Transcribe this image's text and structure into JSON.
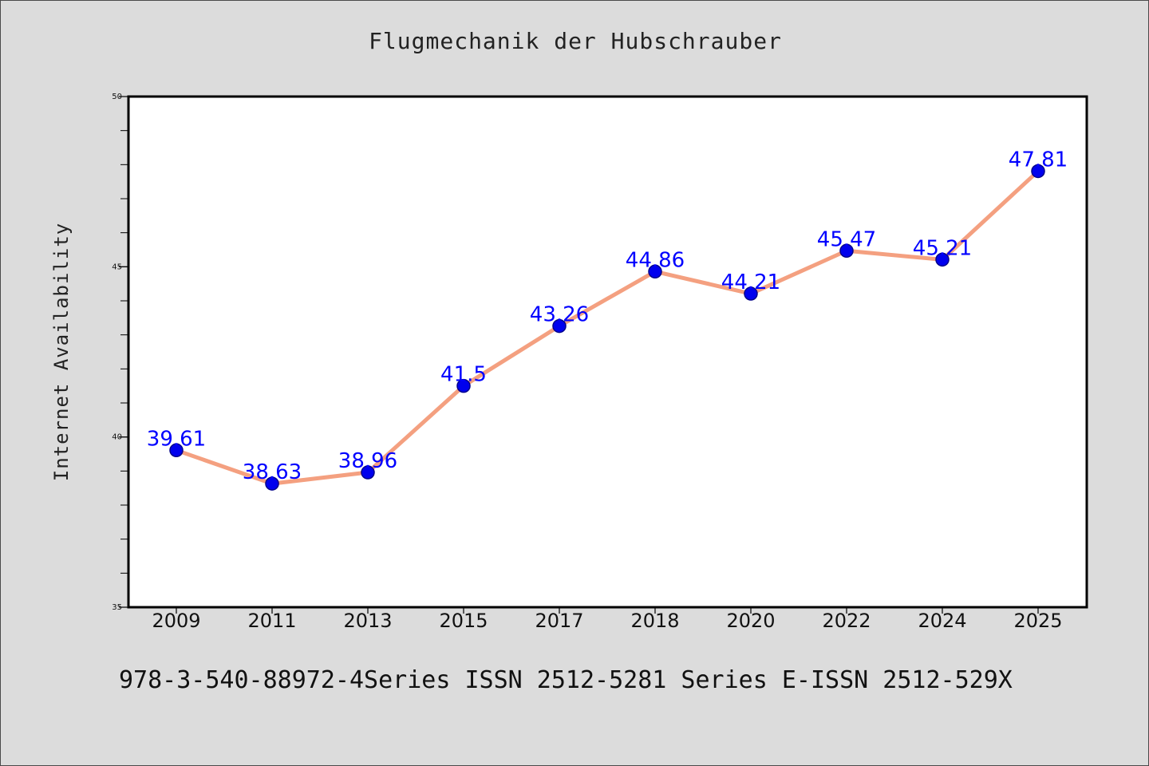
{
  "title": "Flugmechanik der Hubschrauber",
  "footer": "978-3-540-88972-4Series ISSN 2512-5281 Series E-ISSN 2512-529X",
  "colors": {
    "background": "#dcdcdc",
    "plot_background": "#ffffff",
    "line": "#f4a080",
    "marker": "#0000ee",
    "marker_edge": "#00008b",
    "data_label": "#0000ff"
  },
  "chart_data": {
    "type": "line",
    "title": "Flugmechanik der Hubschrauber",
    "xlabel": "",
    "ylabel": "Internet Availability",
    "categories": [
      "2009",
      "2011",
      "2013",
      "2015",
      "2017",
      "2018",
      "2020",
      "2022",
      "2024",
      "2025"
    ],
    "series": [
      {
        "values": [
          39.61,
          38.63,
          38.96,
          41.5,
          43.26,
          44.86,
          44.21,
          45.47,
          45.21,
          47.81
        ],
        "labels": [
          "39.61",
          "38.63",
          "38.96",
          "41.5",
          "43.26",
          "44.86",
          "44.21",
          "45.47",
          "45.21",
          "47.81"
        ]
      }
    ],
    "ylim": [
      35,
      50
    ],
    "yticks": [
      35,
      40,
      45,
      50
    ],
    "grid": false,
    "legend": "none"
  }
}
